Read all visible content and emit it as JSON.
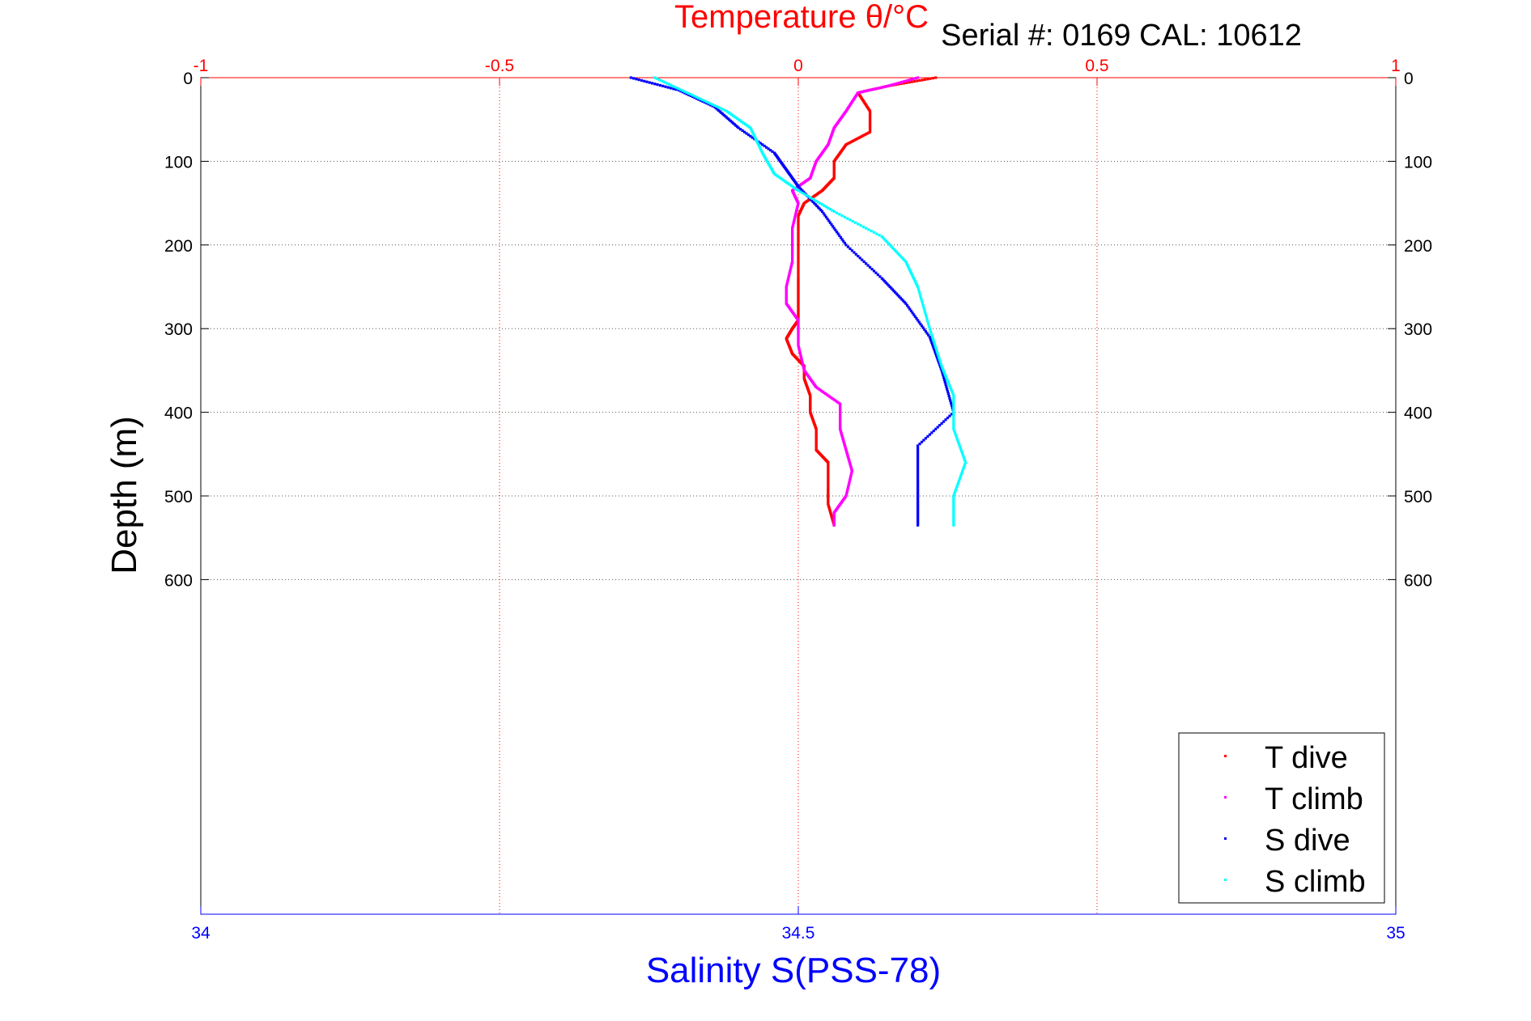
{
  "chart_data": {
    "type": "scatter",
    "title": "Temperature θ/°C",
    "annotation": "Serial #: 0169 CAL: 10612",
    "xlabel": "Salinity S(PSS-78)",
    "ylabel": "Depth (m)",
    "x_bottom": {
      "label": "Salinity S(PSS-78)",
      "lim": [
        34,
        35
      ],
      "ticks": [
        34,
        34.5,
        35
      ],
      "tick_labels": [
        "34",
        "34.5",
        "35"
      ],
      "color": "#0000ff"
    },
    "x_top": {
      "label": "Temperature θ/°C",
      "lim": [
        -1,
        1
      ],
      "ticks": [
        -1,
        -0.5,
        0,
        0.5,
        1
      ],
      "tick_labels": [
        "-1",
        "-0.5",
        "0",
        "0.5",
        "1"
      ],
      "color": "#ff0000"
    },
    "y": {
      "label": "Depth (m)",
      "lim": [
        0,
        1000
      ],
      "reversed": true,
      "ticks": [
        0,
        100,
        200,
        300,
        400,
        500,
        600
      ],
      "tick_labels": [
        "0",
        "100",
        "200",
        "300",
        "400",
        "500",
        "600"
      ]
    },
    "grid": true,
    "legend_position": "bottom-right",
    "series": [
      {
        "name": "T dive",
        "axis": "top",
        "color": "#ff0000",
        "points": [
          [
            0.23,
            0
          ],
          [
            0.15,
            10
          ],
          [
            0.1,
            18
          ],
          [
            0.12,
            40
          ],
          [
            0.12,
            65
          ],
          [
            0.08,
            80
          ],
          [
            0.06,
            100
          ],
          [
            0.06,
            120
          ],
          [
            0.04,
            135
          ],
          [
            0.01,
            150
          ],
          [
            0.0,
            165
          ],
          [
            0.0,
            200
          ],
          [
            0.0,
            240
          ],
          [
            0.0,
            265
          ],
          [
            0.0,
            290
          ],
          [
            -0.01,
            300
          ],
          [
            -0.02,
            312
          ],
          [
            -0.01,
            330
          ],
          [
            0.01,
            345
          ],
          [
            0.01,
            360
          ],
          [
            0.02,
            380
          ],
          [
            0.02,
            400
          ],
          [
            0.03,
            420
          ],
          [
            0.03,
            445
          ],
          [
            0.05,
            460
          ],
          [
            0.05,
            490
          ],
          [
            0.05,
            510
          ],
          [
            0.06,
            535
          ]
        ]
      },
      {
        "name": "T climb",
        "axis": "top",
        "color": "#ff00ff",
        "points": [
          [
            0.2,
            0
          ],
          [
            0.15,
            10
          ],
          [
            0.1,
            18
          ],
          [
            0.08,
            40
          ],
          [
            0.06,
            60
          ],
          [
            0.05,
            80
          ],
          [
            0.03,
            100
          ],
          [
            0.02,
            120
          ],
          [
            -0.01,
            135
          ],
          [
            0.0,
            150
          ],
          [
            -0.01,
            180
          ],
          [
            -0.01,
            220
          ],
          [
            -0.02,
            250
          ],
          [
            -0.02,
            270
          ],
          [
            0.0,
            290
          ],
          [
            0.0,
            320
          ],
          [
            0.01,
            350
          ],
          [
            0.03,
            370
          ],
          [
            0.07,
            390
          ],
          [
            0.07,
            420
          ],
          [
            0.08,
            445
          ],
          [
            0.09,
            470
          ],
          [
            0.08,
            500
          ],
          [
            0.06,
            520
          ],
          [
            0.06,
            535
          ]
        ]
      },
      {
        "name": "S dive",
        "axis": "bottom",
        "color": "#0000ff",
        "points": [
          [
            34.36,
            0
          ],
          [
            34.4,
            15
          ],
          [
            34.43,
            35
          ],
          [
            34.45,
            60
          ],
          [
            34.48,
            90
          ],
          [
            34.49,
            110
          ],
          [
            34.5,
            130
          ],
          [
            34.52,
            160
          ],
          [
            34.54,
            200
          ],
          [
            34.57,
            240
          ],
          [
            34.59,
            270
          ],
          [
            34.61,
            310
          ],
          [
            34.62,
            350
          ],
          [
            34.63,
            400
          ],
          [
            34.6,
            440
          ],
          [
            34.6,
            480
          ],
          [
            34.6,
            510
          ],
          [
            34.6,
            535
          ]
        ]
      },
      {
        "name": "S climb",
        "axis": "bottom",
        "color": "#00ffff",
        "points": [
          [
            34.38,
            0
          ],
          [
            34.41,
            20
          ],
          [
            34.44,
            40
          ],
          [
            34.46,
            60
          ],
          [
            34.47,
            90
          ],
          [
            34.48,
            115
          ],
          [
            34.5,
            135
          ],
          [
            34.53,
            160
          ],
          [
            34.57,
            190
          ],
          [
            34.59,
            220
          ],
          [
            34.6,
            250
          ],
          [
            34.61,
            300
          ],
          [
            34.62,
            345
          ],
          [
            34.63,
            380
          ],
          [
            34.63,
            420
          ],
          [
            34.64,
            460
          ],
          [
            34.63,
            500
          ],
          [
            34.63,
            535
          ]
        ]
      }
    ]
  }
}
